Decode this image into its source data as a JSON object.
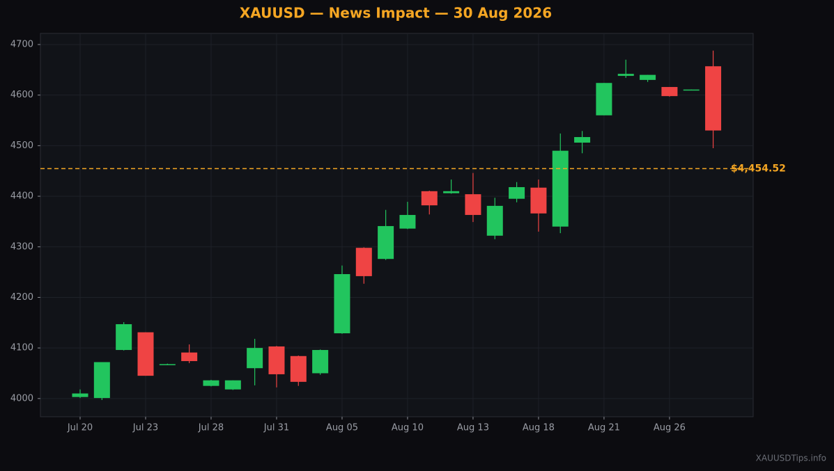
{
  "chart_data": {
    "type": "candlestick",
    "title": "XAUUSD — News Impact — 30 Aug 2026",
    "watermark": "XAUUSDTips.info",
    "categories": [
      "Jul 20",
      null,
      null,
      "Jul 23",
      null,
      null,
      "Jul 28",
      null,
      null,
      "Jul 31",
      null,
      null,
      "Aug 05",
      null,
      null,
      "Aug 10",
      null,
      null,
      "Aug 13",
      null,
      null,
      "Aug 18",
      null,
      null,
      "Aug 21",
      null,
      null,
      "Aug 26",
      null,
      null
    ],
    "open": [
      4003,
      4001,
      4096,
      4131,
      4067,
      4091,
      4025,
      4018,
      4060,
      4103,
      4084,
      4050,
      4129,
      4298,
      4276,
      4336,
      4410,
      4406,
      4404,
      4322,
      4395,
      4417,
      4340,
      4506,
      4560,
      4638,
      4630,
      4616,
      4610,
      4657
    ],
    "high": [
      4018,
      4072,
      4151,
      4131,
      4069,
      4107,
      4037,
      4036,
      4118,
      4104,
      4085,
      4097,
      4263,
      4299,
      4373,
      4389,
      4411,
      4433,
      4446,
      4397,
      4428,
      4433,
      4524,
      4529,
      4624,
      4670,
      4640,
      4616,
      4611,
      4688
    ],
    "low": [
      4001,
      3997,
      4095,
      4045,
      4067,
      4070,
      4024,
      4017,
      4026,
      4022,
      4025,
      4047,
      4128,
      4227,
      4274,
      4335,
      4364,
      4405,
      4349,
      4315,
      4388,
      4330,
      4327,
      4485,
      4560,
      4634,
      4626,
      4597,
      4610,
      4495
    ],
    "close": [
      4010,
      4072,
      4147,
      4045,
      4068,
      4074,
      4036,
      4036,
      4100,
      4048,
      4033,
      4096,
      4246,
      4242,
      4341,
      4363,
      4382,
      4410,
      4363,
      4381,
      4418,
      4366,
      4490,
      4517,
      4624,
      4642,
      4640,
      4598,
      4611,
      4530
    ],
    "up_color": "#22c55e",
    "down_color": "#ef4444",
    "price_line": {
      "value": 4454.52,
      "label": "$4,454.52",
      "color": "#f5a623"
    },
    "ylim": [
      3964,
      4722
    ],
    "yticks": [
      4000,
      4100,
      4200,
      4300,
      4400,
      4500,
      4600,
      4700
    ],
    "grid": true
  }
}
